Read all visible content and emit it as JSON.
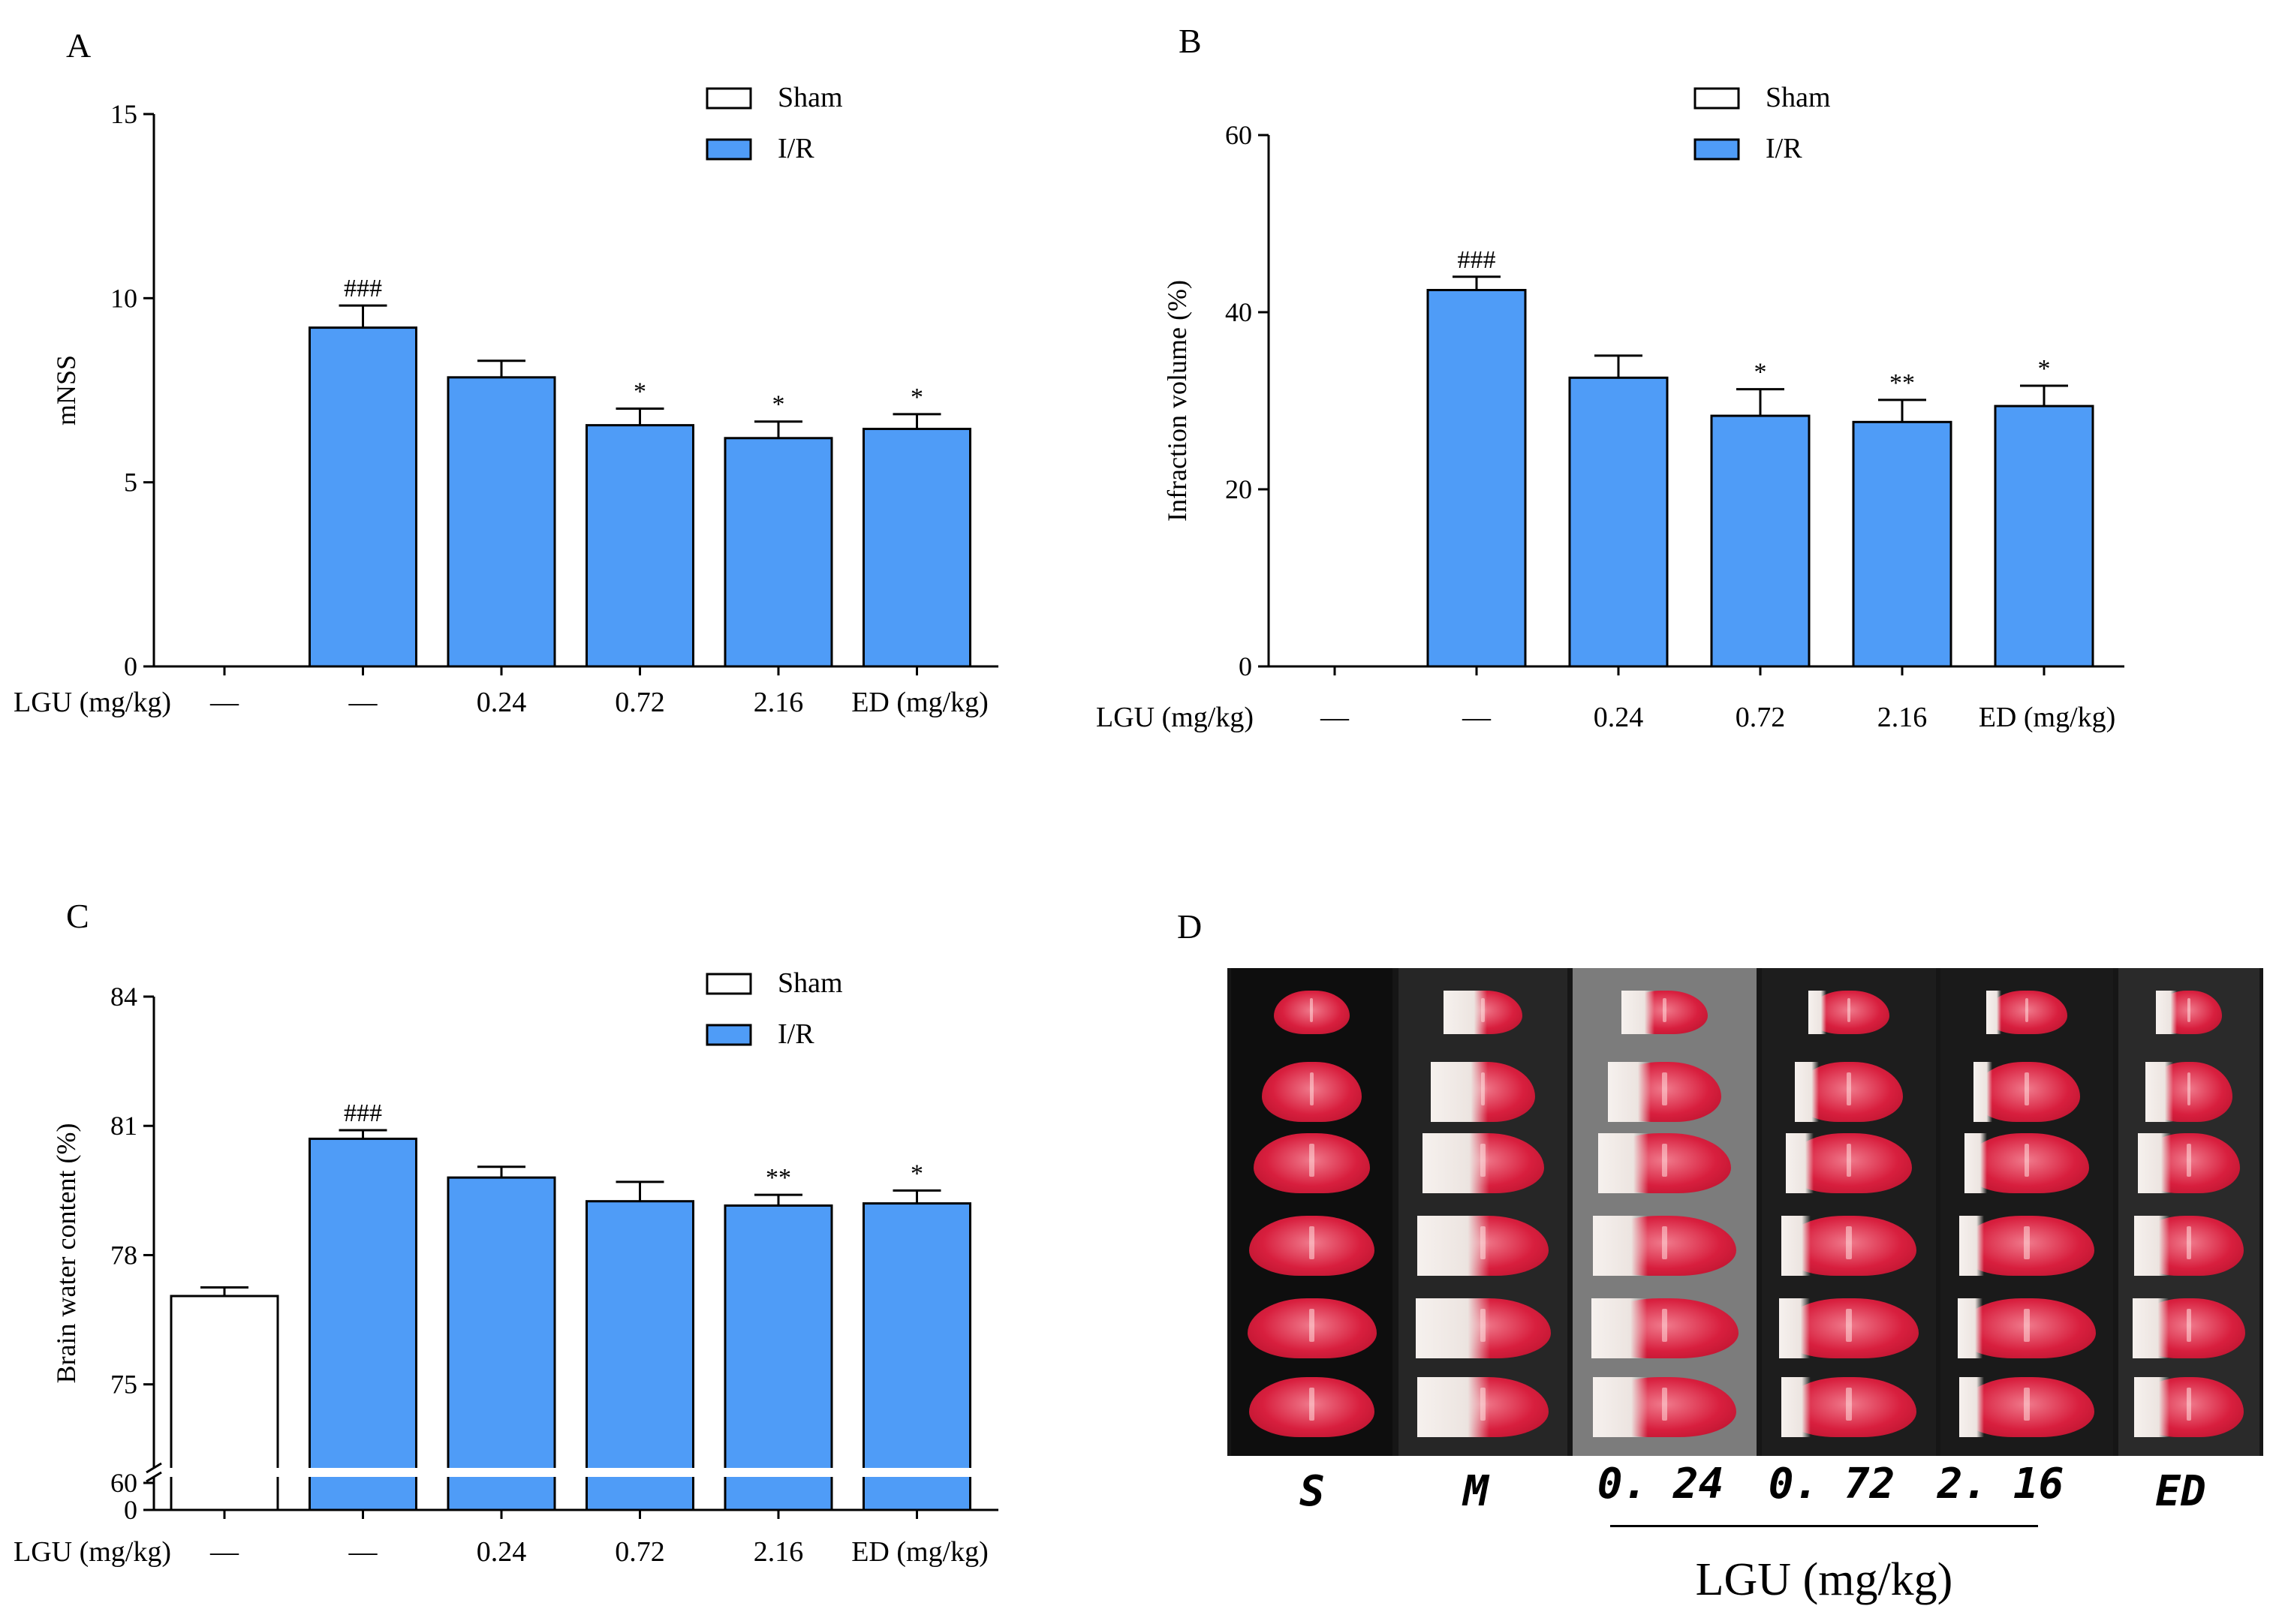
{
  "colors": {
    "ir": "#4f9cf7",
    "sham": "#ffffff",
    "stroke": "#000000"
  },
  "x_group_labels": [
    "—",
    "—",
    "0.24",
    "0.72",
    "2.16",
    "ED (mg/kg)"
  ],
  "x_prefix": "LGU (mg/kg)",
  "legend": {
    "sham": "Sham",
    "ir": "I/R"
  },
  "chart_data": [
    {
      "panel": "A",
      "type": "bar",
      "ylabel": "mNSS",
      "ylim": [
        0,
        15
      ],
      "yticks": [
        0,
        5,
        10,
        15
      ],
      "yticklabels": [
        "0",
        "5",
        "10",
        "15"
      ],
      "categories": [
        "Sham",
        "I/R",
        "LGU 0.24",
        "LGU 0.72",
        "LGU 2.16",
        "ED"
      ],
      "values": [
        0,
        9.2,
        7.85,
        6.55,
        6.2,
        6.45
      ],
      "errors": [
        0,
        0.6,
        0.45,
        0.45,
        0.45,
        0.4
      ],
      "annotations": [
        "",
        "###",
        "",
        "*",
        "*",
        "*"
      ],
      "legend_position": "top-right"
    },
    {
      "panel": "B",
      "type": "bar",
      "ylabel": "Infraction volume (%)",
      "ylim": [
        0,
        60
      ],
      "yticks": [
        0,
        20,
        40,
        60
      ],
      "yticklabels": [
        "0",
        "20",
        "40",
        "60"
      ],
      "categories": [
        "Sham",
        "I/R",
        "LGU 0.24",
        "LGU 0.72",
        "LGU 2.16",
        "ED"
      ],
      "values": [
        0,
        42.5,
        32.6,
        28.3,
        27.6,
        29.4
      ],
      "errors": [
        0,
        1.5,
        2.5,
        3.0,
        2.5,
        2.3
      ],
      "annotations": [
        "",
        "###",
        "",
        "*",
        "**",
        "*"
      ],
      "legend_position": "top-right"
    },
    {
      "panel": "C",
      "type": "bar",
      "ylabel": "Brain water content (%)",
      "ylim": [
        0,
        84
      ],
      "axis_break": [
        60,
        74
      ],
      "yticks": [
        0,
        60,
        75,
        78,
        81,
        84
      ],
      "yticklabels": [
        "0",
        "60",
        "75",
        "78",
        "81",
        "84"
      ],
      "categories": [
        "Sham",
        "I/R",
        "LGU 0.24",
        "LGU 0.72",
        "LGU 2.16",
        "ED"
      ],
      "values": [
        77.05,
        80.7,
        79.8,
        79.25,
        79.15,
        79.2
      ],
      "errors": [
        0.2,
        0.2,
        0.25,
        0.45,
        0.25,
        0.3
      ],
      "annotations": [
        "",
        "###",
        "",
        "",
        "**",
        "*"
      ],
      "legend_position": "top-right"
    }
  ],
  "photo": {
    "panel": "D",
    "group_labels": [
      "S",
      "M",
      "0. 24",
      "0. 72",
      "2. 16",
      "ED"
    ],
    "caption": "LGU (mg/kg)"
  }
}
